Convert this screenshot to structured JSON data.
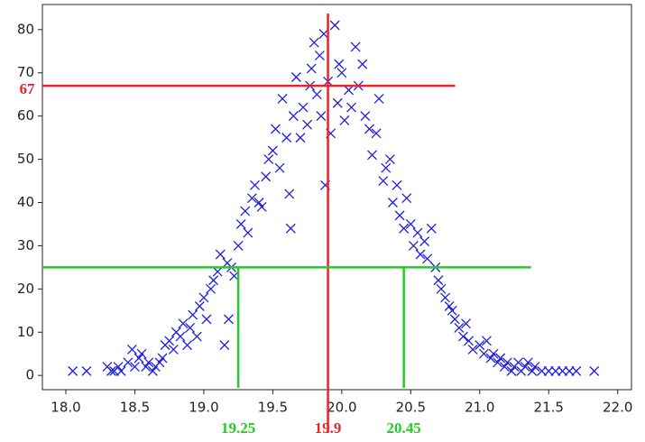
{
  "chart_data": {
    "type": "scatter",
    "marker": "x",
    "color": "#1f1fdc",
    "x": [
      18.05,
      18.15,
      18.3,
      18.33,
      18.35,
      18.38,
      18.4,
      18.45,
      18.48,
      18.5,
      18.53,
      18.55,
      18.58,
      18.6,
      18.63,
      18.65,
      18.68,
      18.7,
      18.72,
      18.75,
      18.78,
      18.8,
      18.83,
      18.85,
      18.88,
      18.9,
      18.92,
      18.95,
      18.97,
      19.0,
      19.02,
      19.05,
      19.07,
      19.1,
      19.12,
      19.15,
      19.17,
      19.18,
      19.2,
      19.22,
      19.25,
      19.27,
      19.3,
      19.32,
      19.35,
      19.37,
      19.4,
      19.42,
      19.45,
      19.47,
      19.5,
      19.52,
      19.55,
      19.57,
      19.6,
      19.62,
      19.63,
      19.65,
      19.67,
      19.7,
      19.72,
      19.75,
      19.77,
      19.78,
      19.8,
      19.82,
      19.84,
      19.85,
      19.87,
      19.88,
      19.9,
      19.92,
      19.95,
      19.97,
      19.98,
      20.0,
      20.02,
      20.05,
      20.07,
      20.1,
      20.12,
      20.15,
      20.17,
      20.2,
      20.22,
      20.25,
      20.27,
      20.3,
      20.32,
      20.35,
      20.37,
      20.4,
      20.42,
      20.45,
      20.47,
      20.5,
      20.52,
      20.55,
      20.57,
      20.6,
      20.62,
      20.65,
      20.68,
      20.7,
      20.72,
      20.75,
      20.78,
      20.8,
      20.82,
      20.85,
      20.88,
      20.9,
      20.92,
      20.95,
      21.0,
      21.03,
      21.05,
      21.08,
      21.1,
      21.13,
      21.15,
      21.18,
      21.2,
      21.23,
      21.25,
      21.28,
      21.3,
      21.33,
      21.35,
      21.38,
      21.4,
      21.45,
      21.5,
      21.55,
      21.6,
      21.65,
      21.7,
      21.83
    ],
    "values": [
      1,
      1,
      2,
      1,
      1,
      2,
      1,
      3,
      6,
      2,
      4,
      5,
      2,
      3,
      1,
      2,
      3,
      4,
      7,
      8,
      6,
      10,
      9,
      12,
      7,
      11,
      14,
      9,
      16,
      18,
      13,
      20,
      22,
      24,
      28,
      7,
      26,
      13,
      25,
      23,
      30,
      35,
      38,
      33,
      41,
      44,
      40,
      39,
      46,
      50,
      52,
      57,
      48,
      64,
      55,
      42,
      34,
      60,
      69,
      55,
      62,
      58,
      67,
      71,
      77,
      65,
      74,
      60,
      79,
      44,
      68,
      56,
      81,
      63,
      72,
      70,
      59,
      66,
      62,
      76,
      67,
      72,
      60,
      57,
      51,
      56,
      64,
      45,
      48,
      50,
      40,
      44,
      37,
      34,
      41,
      35,
      30,
      33,
      28,
      31,
      27,
      34,
      25,
      22,
      20,
      18,
      16,
      15,
      13,
      11,
      9,
      12,
      8,
      6,
      7,
      5,
      8,
      4,
      5,
      3,
      4,
      2,
      3,
      1,
      2,
      3,
      1,
      2,
      3,
      1,
      2,
      1,
      1,
      1,
      1,
      1,
      1,
      1
    ],
    "xlim": [
      17.83,
      22.1
    ],
    "ylim": [
      -3.3,
      85.8
    ],
    "xticks": [
      {
        "value": 18,
        "label": "18.0"
      },
      18.5,
      {
        "value": 19,
        "label": "19.0"
      },
      19.5,
      {
        "value": 20,
        "label": "20.0"
      },
      20.5,
      {
        "value": 21,
        "label": "21.0"
      },
      21.5,
      {
        "value": 22,
        "label": "22.0"
      }
    ],
    "yticks": [
      0,
      10,
      20,
      30,
      40,
      50,
      60,
      70,
      80
    ],
    "annotations": [
      {
        "axis": "y",
        "value": 67,
        "label": "67",
        "color": "#e8262a"
      },
      {
        "axis": "x",
        "value": 19.9,
        "label": "19.9",
        "color": "#e8262a"
      },
      {
        "axis": "y",
        "value": 25,
        "color": "#22cc22"
      },
      {
        "axis": "x",
        "value": 19.25,
        "label": "19.25",
        "color": "#22cc22"
      },
      {
        "axis": "x",
        "value": 20.45,
        "label": "20.45",
        "color": "#22cc22"
      }
    ]
  }
}
